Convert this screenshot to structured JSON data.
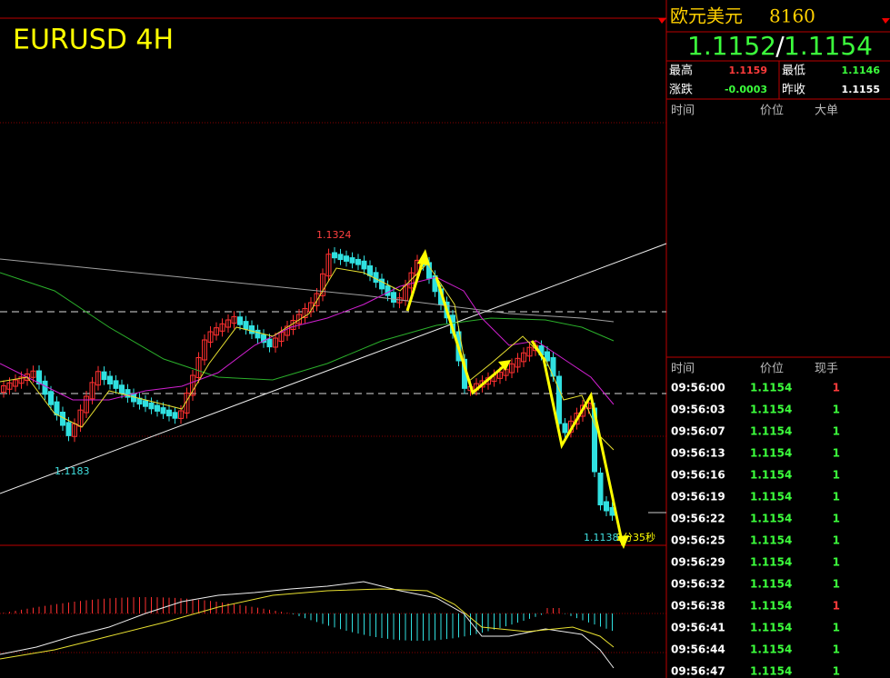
{
  "chart": {
    "title": "EURUSD 4H",
    "high_label": "1.1324",
    "low_label": "1.1183",
    "last_label": "1.1138",
    "countdown": "2分35秒"
  },
  "quote": {
    "name": "欧元美元",
    "code": "8160",
    "bid": "1.1152",
    "separator": "/",
    "ask": "1.1154",
    "stats": [
      {
        "label": "最高",
        "value": "1.1159",
        "color": "#ff3b3b"
      },
      {
        "label": "最低",
        "value": "1.1146",
        "color": "#3cff3c"
      },
      {
        "label": "涨跌",
        "value": "-0.0003",
        "color": "#3cff3c"
      },
      {
        "label": "昨收",
        "value": "1.1155",
        "color": "#ffffff"
      }
    ]
  },
  "big_orders": {
    "headers": [
      "时间",
      "价位",
      "大单"
    ]
  },
  "trades": {
    "headers": [
      "时间",
      "价位",
      "现手"
    ],
    "rows": [
      {
        "time": "09:56:00",
        "price": "1.1154",
        "volume": "1",
        "color": "#ff3b3b"
      },
      {
        "time": "09:56:03",
        "price": "1.1154",
        "volume": "1",
        "color": "#3cff3c"
      },
      {
        "time": "09:56:07",
        "price": "1.1154",
        "volume": "1",
        "color": "#3cff3c"
      },
      {
        "time": "09:56:13",
        "price": "1.1154",
        "volume": "1",
        "color": "#3cff3c"
      },
      {
        "time": "09:56:16",
        "price": "1.1154",
        "volume": "1",
        "color": "#3cff3c"
      },
      {
        "time": "09:56:19",
        "price": "1.1154",
        "volume": "1",
        "color": "#3cff3c"
      },
      {
        "time": "09:56:22",
        "price": "1.1154",
        "volume": "1",
        "color": "#3cff3c"
      },
      {
        "time": "09:56:25",
        "price": "1.1154",
        "volume": "1",
        "color": "#3cff3c"
      },
      {
        "time": "09:56:29",
        "price": "1.1154",
        "volume": "1",
        "color": "#3cff3c"
      },
      {
        "time": "09:56:32",
        "price": "1.1154",
        "volume": "1",
        "color": "#3cff3c"
      },
      {
        "time": "09:56:38",
        "price": "1.1154",
        "volume": "1",
        "color": "#ff3b3b"
      },
      {
        "time": "09:56:41",
        "price": "1.1154",
        "volume": "1",
        "color": "#3cff3c"
      },
      {
        "time": "09:56:44",
        "price": "1.1154",
        "volume": "1",
        "color": "#3cff3c"
      },
      {
        "time": "09:56:47",
        "price": "1.1154",
        "volume": "1",
        "color": "#3cff3c"
      }
    ]
  }
}
